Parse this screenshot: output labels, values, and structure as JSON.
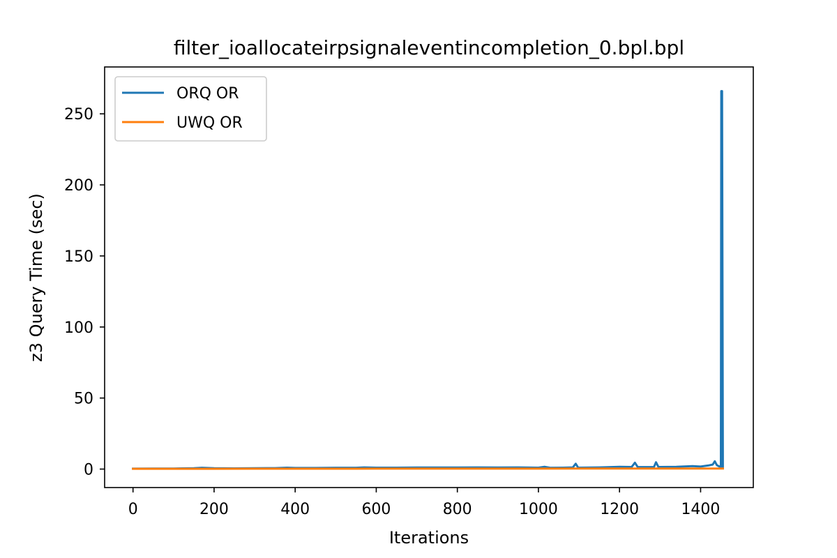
{
  "chart_data": {
    "type": "line",
    "title": "filter_ioallocateirpsignaleventincompletion_0.bpl.bpl",
    "xlabel": "Iterations",
    "ylabel": "z3 Query Time (sec)",
    "xlim": [
      -70,
      1530
    ],
    "ylim": [
      -13,
      283
    ],
    "xticks": [
      0,
      200,
      400,
      600,
      800,
      1000,
      1200,
      1400
    ],
    "yticks": [
      0,
      50,
      100,
      150,
      200,
      250
    ],
    "grid": false,
    "legend_position": "upper left",
    "series": [
      {
        "name": "ORQ OR",
        "color": "#1f77b4",
        "points": [
          [
            0,
            0.3
          ],
          [
            50,
            0.4
          ],
          [
            100,
            0.4
          ],
          [
            150,
            0.6
          ],
          [
            170,
            0.9
          ],
          [
            200,
            0.6
          ],
          [
            250,
            0.5
          ],
          [
            300,
            0.6
          ],
          [
            350,
            0.7
          ],
          [
            380,
            1.0
          ],
          [
            400,
            0.8
          ],
          [
            450,
            0.8
          ],
          [
            500,
            0.9
          ],
          [
            550,
            0.9
          ],
          [
            570,
            1.2
          ],
          [
            600,
            1.0
          ],
          [
            650,
            1.0
          ],
          [
            700,
            1.1
          ],
          [
            750,
            1.1
          ],
          [
            800,
            1.1
          ],
          [
            850,
            1.2
          ],
          [
            900,
            1.1
          ],
          [
            950,
            1.2
          ],
          [
            1000,
            1.0
          ],
          [
            1015,
            1.6
          ],
          [
            1030,
            0.9
          ],
          [
            1060,
            1.0
          ],
          [
            1085,
            1.2
          ],
          [
            1092,
            3.8
          ],
          [
            1098,
            1.0
          ],
          [
            1150,
            1.2
          ],
          [
            1200,
            1.6
          ],
          [
            1230,
            1.5
          ],
          [
            1238,
            4.5
          ],
          [
            1245,
            1.4
          ],
          [
            1285,
            1.5
          ],
          [
            1290,
            4.8
          ],
          [
            1296,
            1.5
          ],
          [
            1340,
            1.6
          ],
          [
            1380,
            2.1
          ],
          [
            1400,
            1.8
          ],
          [
            1420,
            2.6
          ],
          [
            1430,
            3.2
          ],
          [
            1435,
            5.5
          ],
          [
            1440,
            2.8
          ],
          [
            1445,
            2.0
          ],
          [
            1450,
            1.5
          ],
          [
            1451,
            266.0
          ],
          [
            1453,
            266.0
          ],
          [
            1455,
            0.5
          ]
        ]
      },
      {
        "name": "UWQ OR",
        "color": "#ff7f0e",
        "points": [
          [
            0,
            0.2
          ],
          [
            100,
            0.2
          ],
          [
            200,
            0.2
          ],
          [
            300,
            0.25
          ],
          [
            400,
            0.25
          ],
          [
            500,
            0.25
          ],
          [
            600,
            0.3
          ],
          [
            700,
            0.3
          ],
          [
            800,
            0.3
          ],
          [
            900,
            0.3
          ],
          [
            1000,
            0.3
          ],
          [
            1100,
            0.35
          ],
          [
            1200,
            0.35
          ],
          [
            1300,
            0.35
          ],
          [
            1400,
            0.4
          ],
          [
            1455,
            0.4
          ]
        ]
      }
    ]
  }
}
